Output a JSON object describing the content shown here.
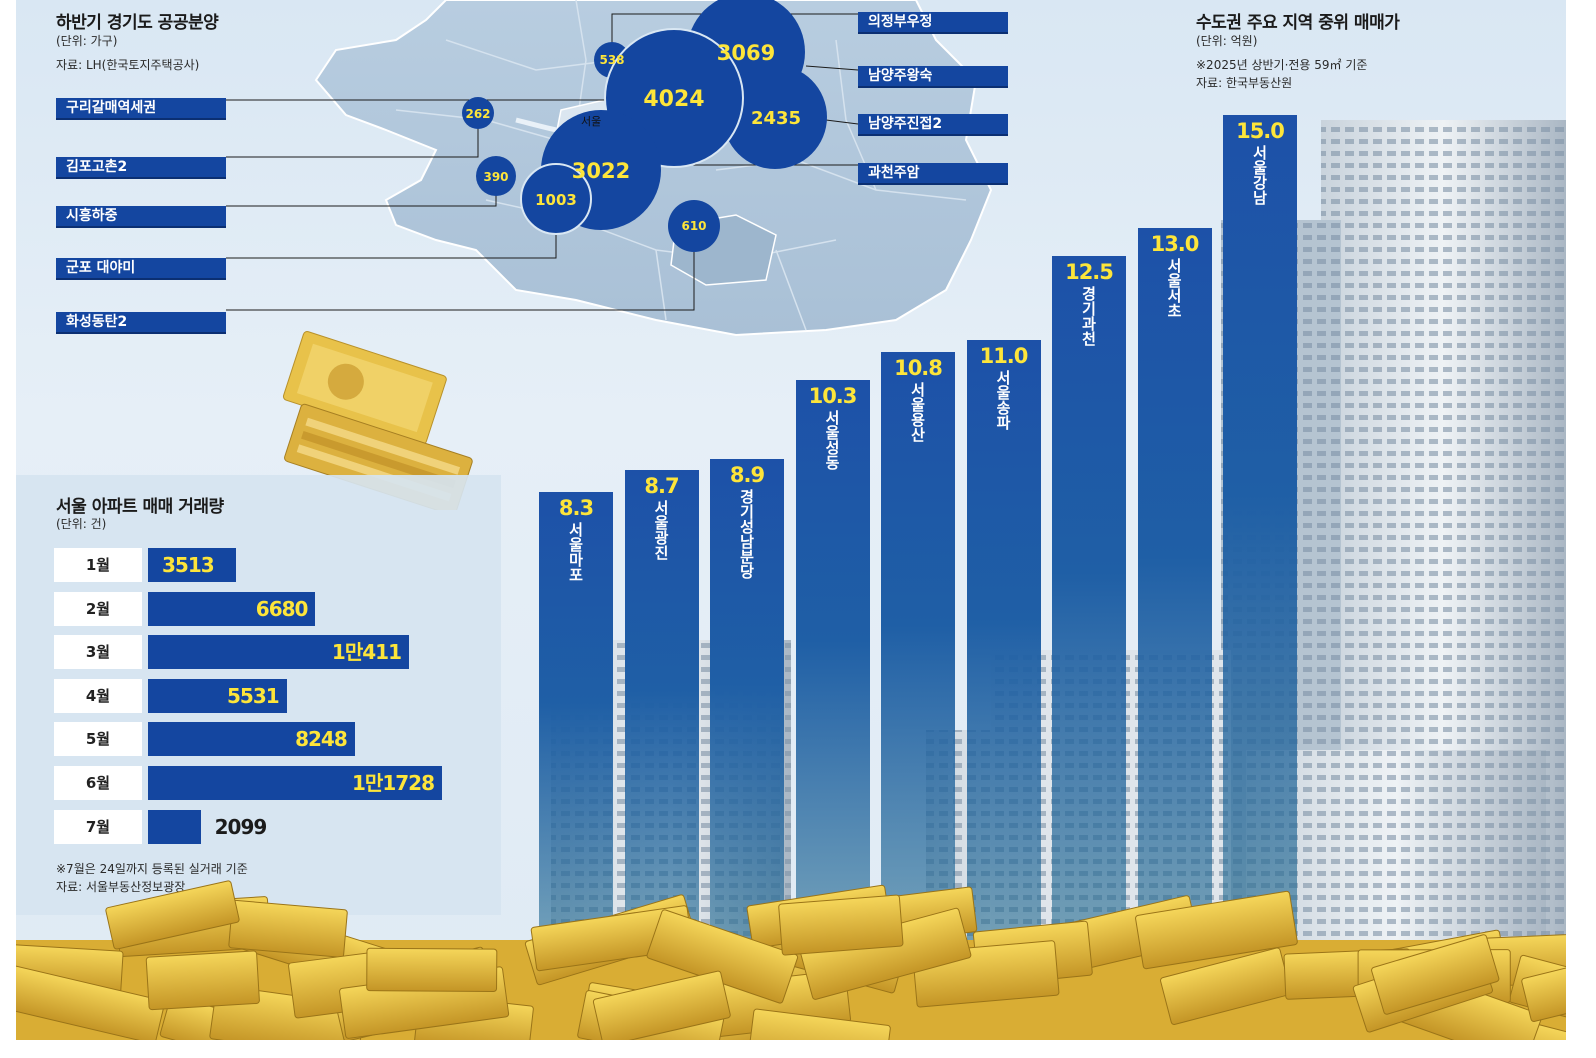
{
  "map_section": {
    "title": "하반기 경기도 공공분양",
    "unit": "(단위: 가구)",
    "source": "자료: LH(한국토지주택공사)",
    "seoul_label": "서울"
  },
  "price_section": {
    "title": "수도권 주요 지역 중위 매매가",
    "unit": "(단위: 억원)",
    "note": "※2025년 상반기·전용 59㎡ 기준",
    "source": "자료: 한국부동산원"
  },
  "volume_section": {
    "title": "서울 아파트 매매 거래량",
    "unit": "(단위: 건)",
    "note": "※7월은 24일까지 등록된 실거래 기준",
    "source": "자료: 서울부동산정보광장"
  },
  "colors": {
    "accent": "#1446a0",
    "value_yellow": "#fde53a"
  },
  "chart_data": [
    {
      "type": "scatter",
      "title": "하반기 경기도 공공분양",
      "unit": "가구",
      "points": [
        {
          "name": "의정부우정",
          "value": 538,
          "value_label": "538"
        },
        {
          "name": "남양주왕숙",
          "value": 3069,
          "value_label": "3069"
        },
        {
          "name": "구리갈매역세권",
          "value": 4024,
          "value_label": "4024"
        },
        {
          "name": "남양주진접2",
          "value": 2435,
          "value_label": "2435"
        },
        {
          "name": "김포고촌2",
          "value": 262,
          "value_label": "262"
        },
        {
          "name": "과천주암",
          "value": 3022,
          "value_label": "3022"
        },
        {
          "name": "시흥하중",
          "value": 390,
          "value_label": "390"
        },
        {
          "name": "군포 대야미",
          "value": 1003,
          "value_label": "1003"
        },
        {
          "name": "화성동탄2",
          "value": 610,
          "value_label": "610"
        }
      ],
      "display_labels": [
        "의정부우정",
        "남양주왕숙",
        "구리갈매역세권",
        "남양주진접2",
        "김포고촌2",
        "과천주암",
        "시흥하중",
        "군포 대야미",
        "화성동탄2"
      ]
    },
    {
      "type": "bar",
      "title": "수도권 주요 지역 중위 매매가",
      "unit": "억원",
      "categories": [
        "서울 마포",
        "서울 광진",
        "경기 성남 분당",
        "서울 성동",
        "서울 용산",
        "서울 송파",
        "경기 과천",
        "서울 서초",
        "서울 강남"
      ],
      "values": [
        8.3,
        8.7,
        8.9,
        10.3,
        10.8,
        11.0,
        12.5,
        13.0,
        15.0
      ],
      "value_labels": [
        "8.3",
        "8.7",
        "8.9",
        "10.3",
        "10.8",
        "11.0",
        "12.5",
        "13.0",
        "15.0"
      ],
      "name_labels": [
        "서울마포",
        "서울광진",
        "경기성남분당",
        "서울성동",
        "서울용산",
        "서울송파",
        "경기과천",
        "서울서초",
        "서울강남"
      ]
    },
    {
      "type": "bar",
      "orientation": "horizontal",
      "title": "서울 아파트 매매 거래량",
      "unit": "건",
      "categories": [
        "1월",
        "2월",
        "3월",
        "4월",
        "5월",
        "6월",
        "7월"
      ],
      "values": [
        3513,
        6680,
        10411,
        5531,
        8248,
        11728,
        2099
      ],
      "value_labels": [
        "3513",
        "6680",
        "1만411",
        "5531",
        "8248",
        "1만1728",
        "2099"
      ]
    }
  ]
}
